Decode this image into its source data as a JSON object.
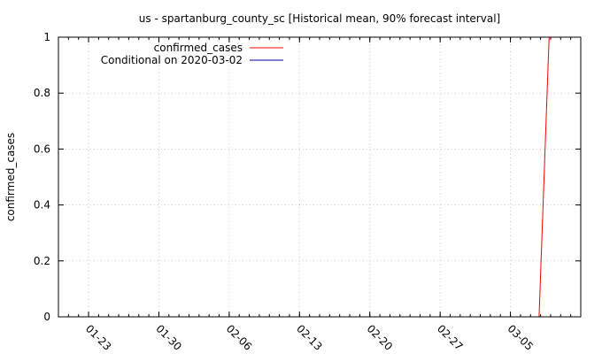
{
  "chart_data": {
    "type": "line",
    "title": "us - spartanburg_county_sc [Historical mean, 90% forecast interval]",
    "xlabel": "",
    "ylabel": "confirmed_cases",
    "x_start": "2020-01-20",
    "x_end": "2020-03-12",
    "xlim": [
      0,
      52
    ],
    "ylim": [
      0,
      1
    ],
    "x_ticks": [
      {
        "label": "01-23",
        "day": 3
      },
      {
        "label": "01-30",
        "day": 10
      },
      {
        "label": "02-06",
        "day": 17
      },
      {
        "label": "02-13",
        "day": 24
      },
      {
        "label": "02-20",
        "day": 31
      },
      {
        "label": "02-27",
        "day": 38
      },
      {
        "label": "03-05",
        "day": 45
      }
    ],
    "y_ticks": [
      "0",
      "0.2",
      "0.4",
      "0.6",
      "0.8",
      "1"
    ],
    "y_tick_values": [
      0,
      0.2,
      0.4,
      0.6,
      0.8,
      1.0
    ],
    "grid": true,
    "legend_position": "top-left",
    "series": [
      {
        "name": "confirmed_cases",
        "color": "#ff0000",
        "x": [
          47.85,
          48.85
        ],
        "y": [
          0,
          1
        ]
      },
      {
        "name": "Conditional on 2020-03-02",
        "color": "#0000a0",
        "x": [],
        "y": []
      }
    ]
  }
}
